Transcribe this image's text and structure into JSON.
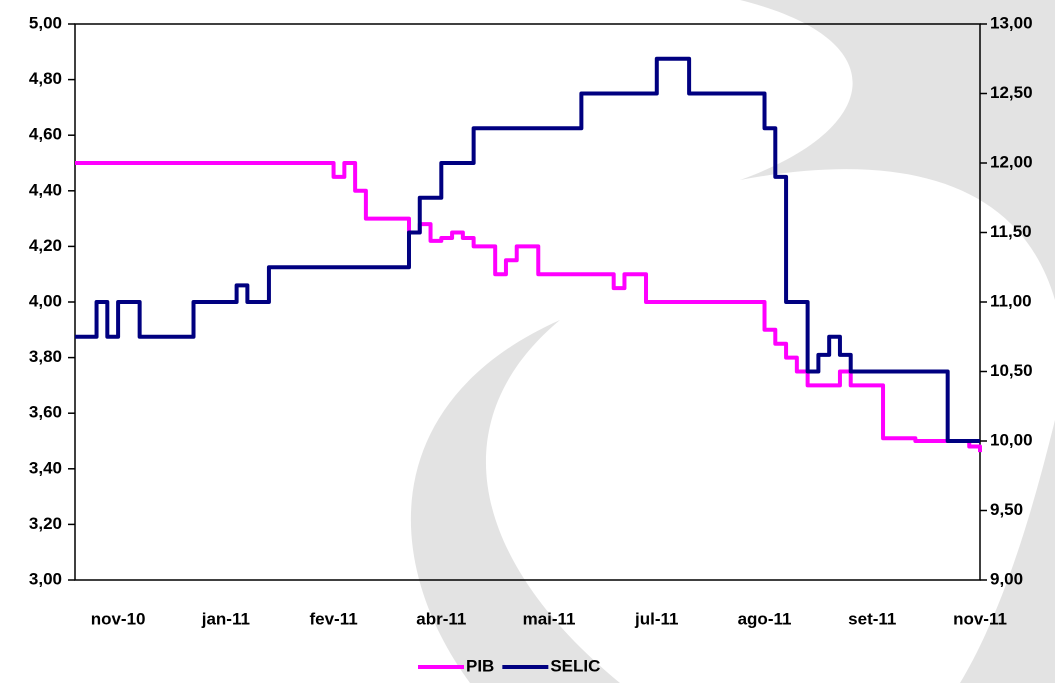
{
  "chart_data": {
    "type": "line",
    "categories": [
      null,
      null,
      null,
      null,
      "nov-10",
      null,
      null,
      null,
      null,
      null,
      null,
      null,
      null,
      null,
      "jan-11",
      null,
      null,
      null,
      null,
      null,
      null,
      null,
      null,
      null,
      "fev-11",
      null,
      null,
      null,
      null,
      null,
      null,
      null,
      null,
      null,
      "abr-11",
      null,
      null,
      null,
      null,
      null,
      null,
      null,
      null,
      null,
      "mai-11",
      null,
      null,
      null,
      null,
      null,
      null,
      null,
      null,
      null,
      "jul-11",
      null,
      null,
      null,
      null,
      null,
      null,
      null,
      null,
      null,
      "ago-11",
      null,
      null,
      null,
      null,
      null,
      null,
      null,
      null,
      null,
      "set-11",
      null,
      null,
      null,
      null,
      null,
      null,
      null,
      null,
      null,
      "nov-11"
    ],
    "series": [
      {
        "name": "PIB",
        "color": "#ff00ff",
        "values": [
          4.5,
          4.5,
          4.5,
          4.5,
          4.5,
          4.5,
          4.5,
          4.5,
          4.5,
          4.5,
          4.5,
          4.5,
          4.5,
          4.5,
          4.5,
          4.5,
          4.5,
          4.5,
          4.5,
          4.5,
          4.5,
          4.5,
          4.5,
          4.5,
          4.45,
          4.5,
          4.4,
          4.3,
          4.3,
          4.3,
          4.3,
          4.25,
          4.28,
          4.22,
          4.23,
          4.25,
          4.23,
          4.2,
          4.2,
          4.1,
          4.15,
          4.2,
          4.2,
          4.1,
          4.1,
          4.1,
          4.1,
          4.1,
          4.1,
          4.1,
          4.05,
          4.1,
          4.1,
          4.0,
          4.0,
          4.0,
          4.0,
          4.0,
          4.0,
          4.0,
          4.0,
          4.0,
          4.0,
          4.0,
          3.9,
          3.85,
          3.8,
          3.75,
          3.7,
          3.7,
          3.7,
          3.75,
          3.7,
          3.7,
          3.7,
          3.51,
          3.51,
          3.51,
          3.5,
          3.5,
          3.5,
          3.5,
          3.5,
          3.48,
          3.46
        ]
      },
      {
        "name": "SELIC",
        "color": "#000080",
        "axis": "y2",
        "values": [
          10.75,
          10.75,
          11.0,
          10.75,
          11.0,
          11.0,
          10.75,
          10.75,
          10.75,
          10.75,
          10.75,
          11.0,
          11.0,
          11.0,
          11.0,
          11.12,
          11.0,
          11.0,
          11.25,
          11.25,
          11.25,
          11.25,
          11.25,
          11.25,
          11.25,
          11.25,
          11.25,
          11.25,
          11.25,
          11.25,
          11.25,
          11.5,
          11.75,
          11.75,
          12.0,
          12.0,
          12.0,
          12.25,
          12.25,
          12.25,
          12.25,
          12.25,
          12.25,
          12.25,
          12.25,
          12.25,
          12.25,
          12.5,
          12.5,
          12.5,
          12.5,
          12.5,
          12.5,
          12.5,
          12.75,
          12.75,
          12.75,
          12.5,
          12.5,
          12.5,
          12.5,
          12.5,
          12.5,
          12.5,
          12.25,
          11.9,
          11.0,
          11.0,
          10.5,
          10.62,
          10.75,
          10.62,
          10.5,
          10.5,
          10.5,
          10.5,
          10.5,
          10.5,
          10.5,
          10.5,
          10.5,
          10.0,
          10.0,
          10.0,
          10.0
        ]
      }
    ],
    "ylim": [
      3,
      5
    ],
    "yticks": [
      {
        "value": 3,
        "label": "3,00"
      },
      {
        "value": 3.2,
        "label": "3,20"
      },
      {
        "value": 3.4,
        "label": "3,40"
      },
      {
        "value": 3.6,
        "label": "3,60"
      },
      {
        "value": 3.8,
        "label": "3,80"
      },
      {
        "value": 4,
        "label": "4,00"
      },
      {
        "value": 4.2,
        "label": "4,20"
      },
      {
        "value": 4.4,
        "label": "4,40"
      },
      {
        "value": 4.6,
        "label": "4,60"
      },
      {
        "value": 4.8,
        "label": "4,80"
      },
      {
        "value": 5,
        "label": "5,00"
      }
    ],
    "y2lim": [
      9,
      13
    ],
    "y2ticks": [
      {
        "value": 9,
        "label": "9,00"
      },
      {
        "value": 9.5,
        "label": "9,50"
      },
      {
        "value": 10,
        "label": "10,00"
      },
      {
        "value": 10.5,
        "label": "10,50"
      },
      {
        "value": 11,
        "label": "11,00"
      },
      {
        "value": 11.5,
        "label": "11,50"
      },
      {
        "value": 12,
        "label": "12,00"
      },
      {
        "value": 12.5,
        "label": "12,50"
      },
      {
        "value": 13,
        "label": "13,00"
      }
    ],
    "legend": "bottom"
  }
}
